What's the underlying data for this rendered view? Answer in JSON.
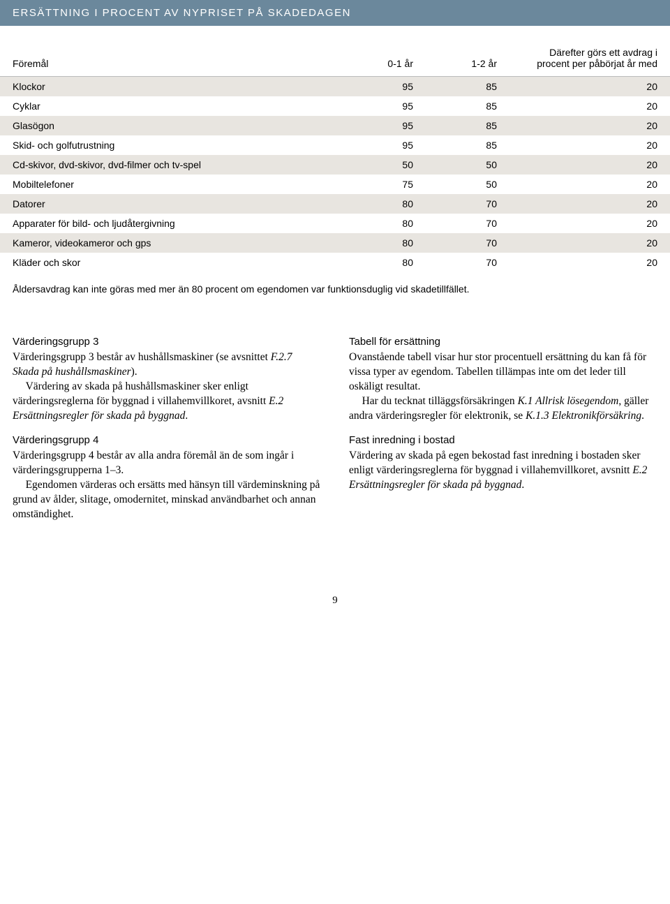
{
  "title": "ERSÄTTNING I PROCENT AV NYPRISET PÅ SKADEDAGEN",
  "table": {
    "headers": {
      "item": "Föremål",
      "y01": "0-1 år",
      "y12": "1-2 år",
      "after": "Därefter görs ett avdrag i procent per påbörjat år med"
    },
    "rows": [
      {
        "label": "Klockor",
        "y01": "95",
        "y12": "85",
        "after": "20",
        "shade": true
      },
      {
        "label": "Cyklar",
        "y01": "95",
        "y12": "85",
        "after": "20",
        "shade": false
      },
      {
        "label": "Glasögon",
        "y01": "95",
        "y12": "85",
        "after": "20",
        "shade": true
      },
      {
        "label": "Skid- och golfutrustning",
        "y01": "95",
        "y12": "85",
        "after": "20",
        "shade": false
      },
      {
        "label": "Cd-skivor, dvd-skivor, dvd-filmer och tv-spel",
        "y01": "50",
        "y12": "50",
        "after": "20",
        "shade": true
      },
      {
        "label": "Mobiltelefoner",
        "y01": "75",
        "y12": "50",
        "after": "20",
        "shade": false
      },
      {
        "label": "Datorer",
        "y01": "80",
        "y12": "70",
        "after": "20",
        "shade": true
      },
      {
        "label": "Apparater för bild- och ljudåtergivning",
        "y01": "80",
        "y12": "70",
        "after": "20",
        "shade": false
      },
      {
        "label": "Kameror, videokameror och gps",
        "y01": "80",
        "y12": "70",
        "after": "20",
        "shade": true
      },
      {
        "label": "Kläder och skor",
        "y01": "80",
        "y12": "70",
        "after": "20",
        "shade": false
      }
    ],
    "footnote": "Åldersavdrag kan inte göras med mer än 80 procent om egendomen var funktionsduglig vid skadetillfället."
  },
  "left": {
    "s1_head": "Värderingsgrupp 3",
    "s1_p1a": "Värderingsgrupp 3 består av hushållsmaskiner (se avsnittet ",
    "s1_p1b": "F.2.7 Skada på hushållsmaskiner",
    "s1_p1c": ").",
    "s1_p2a": "Värdering av skada på hushållsmaskiner sker enligt värderingsreglerna för byggnad i villahemvillkoret, avsnitt ",
    "s1_p2b": "E.2 Ersättningsregler för skada på byggnad",
    "s1_p2c": ".",
    "s2_head": "Värderingsgrupp 4",
    "s2_p1": "Värderingsgrupp 4 består av alla andra föremål än de som ingår i värderingsgrupperna 1–3.",
    "s2_p2": "Egendomen värderas och ersätts med hänsyn till värdeminskning på grund av ålder, slitage, omodernitet, minskad användbarhet och annan omständighet."
  },
  "right": {
    "s1_head": "Tabell för ersättning",
    "s1_p1": "Ovanstående tabell visar hur stor procentuell ersättning du kan få för vissa typer av egendom. Tabellen tillämpas inte om det leder till oskäligt resultat.",
    "s1_p2a": "Har du tecknat tilläggsförsäkringen ",
    "s1_p2b": "K.1 Allrisk lösegendom",
    "s1_p2c": ", gäller andra värderingsregler för elektronik, se ",
    "s1_p2d": "K.1.3 Elektronikförsäkring",
    "s1_p2e": ".",
    "s2_head": "Fast inredning i bostad",
    "s2_p1a": "Värdering av skada på egen bekostad fast inredning i bostaden sker enligt värderingsreglerna för byggnad i villahemvillkoret, avsnitt ",
    "s2_p1b": "E.2 Ersättningsregler för skada på byggnad",
    "s2_p1c": "."
  },
  "pagenum": "9"
}
